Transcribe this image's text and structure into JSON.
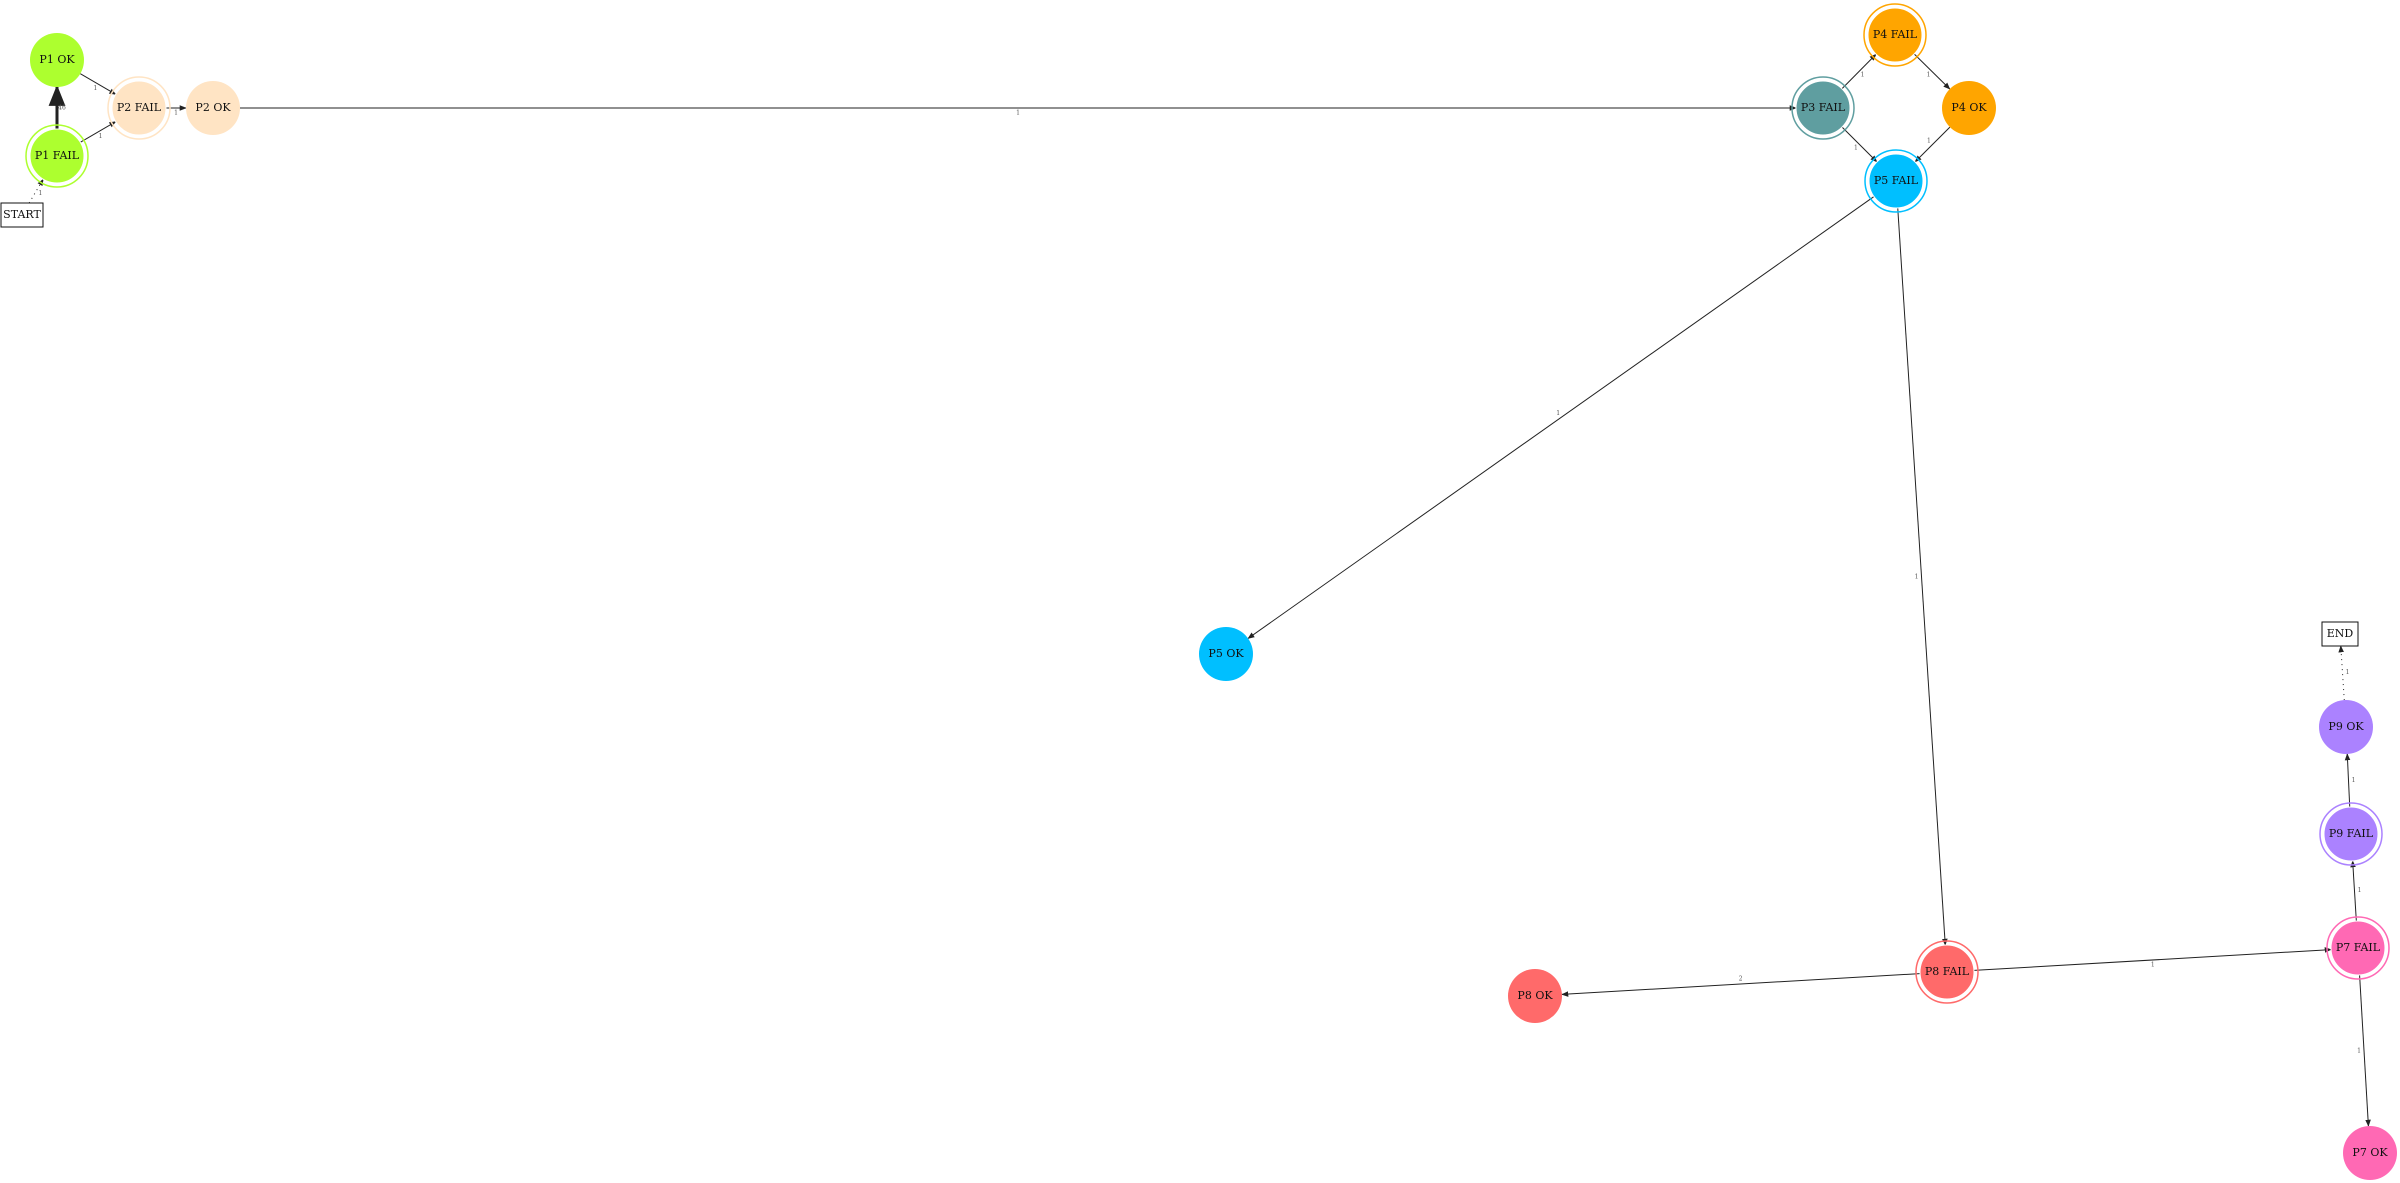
{
  "palette": {
    "P1": "#adff2f",
    "P2": "#ffe4c4",
    "P3": "#5f9ea0",
    "P4": "#ffa500",
    "P5": "#00bfff",
    "P7": "#ff69b4",
    "P8": "#ff6a6a",
    "P9": "#ab82ff"
  },
  "boxes": [
    {
      "id": "start",
      "label": "START"
    },
    {
      "id": "end",
      "label": "END"
    }
  ],
  "nodes": [
    {
      "id": "p1ok",
      "label": "P1 OK",
      "group": "P1",
      "double": false
    },
    {
      "id": "p1fail",
      "label": "P1 FAIL",
      "group": "P1",
      "double": true
    },
    {
      "id": "p2fail",
      "label": "P2 FAIL",
      "group": "P2",
      "double": true
    },
    {
      "id": "p2ok",
      "label": "P2 OK",
      "group": "P2",
      "double": false
    },
    {
      "id": "p3fail",
      "label": "P3 FAIL",
      "group": "P3",
      "double": true
    },
    {
      "id": "p4fail",
      "label": "P4 FAIL",
      "group": "P4",
      "double": true
    },
    {
      "id": "p4ok",
      "label": "P4 OK",
      "group": "P4",
      "double": false
    },
    {
      "id": "p5fail",
      "label": "P5 FAIL",
      "group": "P5",
      "double": true
    },
    {
      "id": "p5ok",
      "label": "P5 OK",
      "group": "P5",
      "double": false
    },
    {
      "id": "p8fail",
      "label": "P8 FAIL",
      "group": "P8",
      "double": true
    },
    {
      "id": "p8ok",
      "label": "P8 OK",
      "group": "P8",
      "double": false
    },
    {
      "id": "p7fail",
      "label": "P7 FAIL",
      "group": "P7",
      "double": true
    },
    {
      "id": "p7ok",
      "label": "P7 OK",
      "group": "P7",
      "double": false
    },
    {
      "id": "p9fail",
      "label": "P9 FAIL",
      "group": "P9",
      "double": true
    },
    {
      "id": "p9ok",
      "label": "P9 OK",
      "group": "P9",
      "double": false
    }
  ],
  "edges": [
    {
      "from": "start",
      "to": "p1fail",
      "label": "1",
      "style": "dotted"
    },
    {
      "from": "p1fail",
      "to": "p1ok",
      "label": "46",
      "style": "bold"
    },
    {
      "from": "p1fail",
      "to": "p2fail",
      "label": "1",
      "style": "solid"
    },
    {
      "from": "p1ok",
      "to": "p2fail",
      "label": "1",
      "style": "solid"
    },
    {
      "from": "p2fail",
      "to": "p2ok",
      "label": "1",
      "style": "solid"
    },
    {
      "from": "p2ok",
      "to": "p3fail",
      "label": "1",
      "style": "solid"
    },
    {
      "from": "p3fail",
      "to": "p4fail",
      "label": "1",
      "style": "solid"
    },
    {
      "from": "p3fail",
      "to": "p5fail",
      "label": "1",
      "style": "solid"
    },
    {
      "from": "p4fail",
      "to": "p4ok",
      "label": "1",
      "style": "solid"
    },
    {
      "from": "p4ok",
      "to": "p5fail",
      "label": "1",
      "style": "solid"
    },
    {
      "from": "p5fail",
      "to": "p5ok",
      "label": "1",
      "style": "solid"
    },
    {
      "from": "p5fail",
      "to": "p8fail",
      "label": "1",
      "style": "solid"
    },
    {
      "from": "p8fail",
      "to": "p8ok",
      "label": "2",
      "style": "solid"
    },
    {
      "from": "p8fail",
      "to": "p7fail",
      "label": "1",
      "style": "solid"
    },
    {
      "from": "p7fail",
      "to": "p9fail",
      "label": "1",
      "style": "solid"
    },
    {
      "from": "p7fail",
      "to": "p7ok",
      "label": "1",
      "style": "solid"
    },
    {
      "from": "p9fail",
      "to": "p9ok",
      "label": "1",
      "style": "solid"
    },
    {
      "from": "p9ok",
      "to": "end",
      "label": "1",
      "style": "dotted"
    }
  ]
}
